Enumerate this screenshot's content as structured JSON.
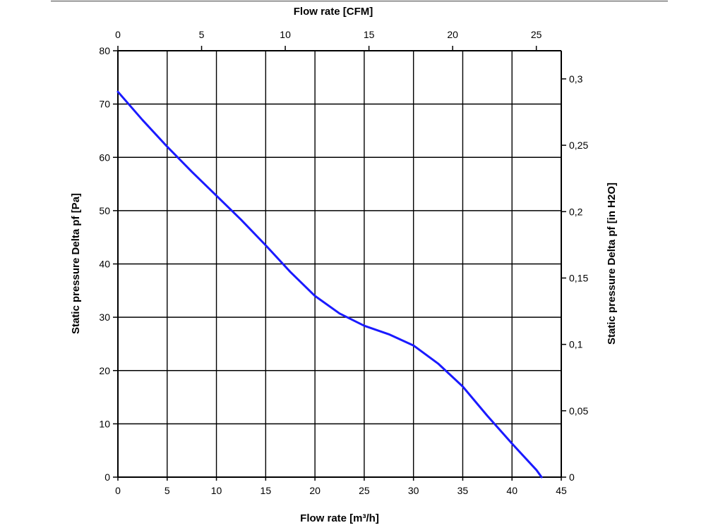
{
  "chart_data": {
    "type": "line",
    "xlabel": "Flow rate [m³/h]",
    "x2label": "Flow rate [CFM]",
    "ylabel": "Static pressure Delta pf [Pa]",
    "y2label": "Static pressure Delta pf [in H2O]",
    "xlim": [
      0,
      45
    ],
    "ylim": [
      0,
      80
    ],
    "x2lim": [
      0,
      26.49
    ],
    "y2lim": [
      0,
      0.3212
    ],
    "x_ticks": [
      0,
      5,
      10,
      15,
      20,
      25,
      30,
      35,
      40,
      45
    ],
    "y_ticks": [
      0,
      10,
      20,
      30,
      40,
      50,
      60,
      70,
      80
    ],
    "x2_ticks": [
      0,
      5,
      10,
      15,
      20,
      25
    ],
    "x2_tick_labels": [
      "0",
      "5",
      "10",
      "15",
      "20",
      "25"
    ],
    "y2_ticks": [
      0,
      0.05,
      0.1,
      0.15,
      0.2,
      0.25,
      0.3
    ],
    "y2_tick_labels": [
      "0",
      "0,05",
      "0,1",
      "0,15",
      "0,2",
      "0,25",
      "0,3"
    ],
    "grid": true,
    "series": [
      {
        "color": "#1a1aff",
        "x": [
          0,
          2.5,
          5,
          7.5,
          10,
          12.5,
          15,
          17.5,
          20,
          22.5,
          25,
          27.5,
          30,
          32.5,
          35,
          37.5,
          40,
          42.5,
          43
        ],
        "y": [
          72.3,
          67,
          62,
          57.3,
          52.8,
          48.3,
          43.5,
          38.5,
          34,
          30.7,
          28.4,
          26.8,
          24.7,
          21.3,
          17,
          11.5,
          6.3,
          1.3,
          0
        ]
      }
    ]
  }
}
